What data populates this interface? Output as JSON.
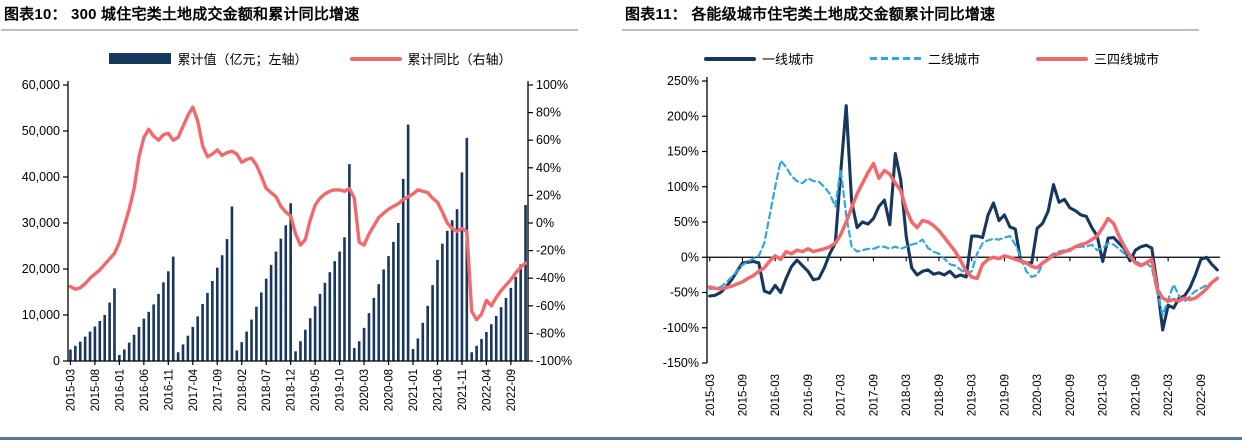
{
  "page": {
    "bottom_rule_color": "#56779f",
    "title_rule_color": "#b7c1d3",
    "axis_color": "#000000"
  },
  "figure10": {
    "title": "图表10： 300 城住宅类土地成交金额和累计同比增速",
    "legend": [
      {
        "label": "累计值（亿元；左轴）",
        "type": "bar",
        "color": "#17375e"
      },
      {
        "label": "累计同比（右轴）",
        "type": "line",
        "color": "#f2696c"
      }
    ],
    "left_axis_ticks": [
      "60,000",
      "50,000",
      "40,000",
      "30,000",
      "20,000",
      "10,000",
      "0"
    ],
    "right_axis_ticks": [
      "100%",
      "80%",
      "60%",
      "40%",
      "20%",
      "0%",
      "-20%",
      "-40%",
      "-60%",
      "-80%",
      "-100%"
    ],
    "x_tick_labels": [
      "2015-03",
      "2015-08",
      "2016-01",
      "2016-06",
      "2016-11",
      "2017-04",
      "2017-09",
      "2018-02",
      "2018-07",
      "2018-12",
      "2019-05",
      "2019-10",
      "2020-03",
      "2020-08",
      "2021-01",
      "2021-06",
      "2021-11",
      "2022-04",
      "2022-09"
    ],
    "chart_data": {
      "type": "bar",
      "title": "300城住宅类土地成交金额和累计同比增速",
      "left_axis_range": [
        0,
        60000
      ],
      "right_axis_range": [
        -100,
        100
      ],
      "grid": false,
      "legend_position": "top",
      "x": [
        "2015-03",
        "2015-04",
        "2015-05",
        "2015-06",
        "2015-07",
        "2015-08",
        "2015-09",
        "2015-10",
        "2015-11",
        "2015-12",
        "2016-01",
        "2016-02",
        "2016-03",
        "2016-04",
        "2016-05",
        "2016-06",
        "2016-07",
        "2016-08",
        "2016-09",
        "2016-10",
        "2016-11",
        "2016-12",
        "2017-01",
        "2017-02",
        "2017-03",
        "2017-04",
        "2017-05",
        "2017-06",
        "2017-07",
        "2017-08",
        "2017-09",
        "2017-10",
        "2017-11",
        "2017-12",
        "2018-01",
        "2018-02",
        "2018-03",
        "2018-04",
        "2018-05",
        "2018-06",
        "2018-07",
        "2018-08",
        "2018-09",
        "2018-10",
        "2018-11",
        "2018-12",
        "2019-01",
        "2019-02",
        "2019-03",
        "2019-04",
        "2019-05",
        "2019-06",
        "2019-07",
        "2019-08",
        "2019-09",
        "2019-10",
        "2019-11",
        "2019-12",
        "2020-01",
        "2020-02",
        "2020-03",
        "2020-04",
        "2020-05",
        "2020-06",
        "2020-07",
        "2020-08",
        "2020-09",
        "2020-10",
        "2020-11",
        "2020-12",
        "2021-01",
        "2021-02",
        "2021-03",
        "2021-04",
        "2021-05",
        "2021-06",
        "2021-07",
        "2021-08",
        "2021-09",
        "2021-10",
        "2021-11",
        "2021-12",
        "2022-01",
        "2022-02",
        "2022-03",
        "2022-04",
        "2022-05",
        "2022-06",
        "2022-07",
        "2022-08",
        "2022-09",
        "2022-10",
        "2022-11",
        "2022-12"
      ],
      "series": [
        {
          "name": "累计值（亿元；左轴）",
          "type": "bar",
          "axis": "left",
          "color": "#17375e",
          "values": [
            2500,
            3300,
            4200,
            5300,
            6400,
            7500,
            8700,
            10000,
            12700,
            15800,
            1300,
            2500,
            4000,
            5700,
            7400,
            9200,
            10700,
            12300,
            14600,
            17100,
            19500,
            22700,
            1900,
            3600,
            5500,
            7400,
            9700,
            12400,
            14800,
            17400,
            20300,
            23000,
            26500,
            33600,
            2300,
            4100,
            6400,
            9000,
            11800,
            14900,
            17900,
            20900,
            23800,
            26600,
            29500,
            34300,
            2100,
            4300,
            6800,
            9300,
            11900,
            14600,
            17000,
            19300,
            21700,
            23800,
            26900,
            42800,
            2800,
            4300,
            7200,
            10400,
            13700,
            16700,
            19900,
            22800,
            25900,
            30000,
            39600,
            51400,
            2600,
            4900,
            8300,
            12000,
            16500,
            22000,
            25500,
            28300,
            30600,
            33000,
            41000,
            48500,
            1900,
            3300,
            4800,
            6300,
            8000,
            9800,
            11700,
            13700,
            15900,
            18300,
            21000,
            33900
          ]
        },
        {
          "name": "累计同比（右轴）",
          "type": "line",
          "axis": "right",
          "color": "#f2696c",
          "values": [
            -46,
            -48,
            -47,
            -44,
            -40,
            -37,
            -34,
            -30,
            -26,
            -22,
            -14,
            -2,
            10,
            25,
            48,
            62,
            68,
            63,
            60,
            64,
            65,
            60,
            62,
            70,
            78,
            84,
            74,
            56,
            48,
            50,
            53,
            49,
            51,
            52,
            50,
            44,
            46,
            47,
            42,
            34,
            25,
            22,
            19,
            12,
            8,
            5,
            -8,
            -16,
            -12,
            2,
            13,
            18,
            21,
            23,
            24,
            24,
            23,
            25,
            18,
            -14,
            -16,
            -8,
            -2,
            4,
            7,
            10,
            12,
            14,
            17,
            19,
            21,
            24,
            23,
            22,
            18,
            15,
            8,
            0,
            -4,
            -6,
            -4,
            -6,
            -64,
            -70,
            -66,
            -56,
            -60,
            -54,
            -49,
            -45,
            -41,
            -36,
            -32,
            -29
          ]
        }
      ]
    }
  },
  "figure11": {
    "title": "图表11： 各能级城市住宅类土地成交金额累计同比增速",
    "legend": [
      {
        "label": "一线城市",
        "type": "line",
        "color": "#17375e"
      },
      {
        "label": "二线城市",
        "type": "dashed-line",
        "color": "#2ea8e0"
      },
      {
        "label": "三四线城市",
        "type": "line",
        "color": "#f2696c"
      }
    ],
    "y_axis_ticks": [
      "250%",
      "200%",
      "150%",
      "100%",
      "50%",
      "0%",
      "-50%",
      "-100%",
      "-150%"
    ],
    "x_tick_labels": [
      "2015-03",
      "2015-09",
      "2016-03",
      "2016-09",
      "2017-03",
      "2017-09",
      "2018-03",
      "2018-09",
      "2019-03",
      "2019-09",
      "2020-03",
      "2020-09",
      "2021-03",
      "2021-09",
      "2022-03",
      "2022-09"
    ],
    "chart_data": {
      "type": "line",
      "title": "各能级城市住宅类土地成交金额累计同比增速",
      "y_axis_range": [
        -150,
        250
      ],
      "grid": false,
      "legend_position": "top",
      "x": [
        "2015-03",
        "2015-04",
        "2015-05",
        "2015-06",
        "2015-07",
        "2015-08",
        "2015-09",
        "2015-10",
        "2015-11",
        "2015-12",
        "2016-01",
        "2016-02",
        "2016-03",
        "2016-04",
        "2016-05",
        "2016-06",
        "2016-07",
        "2016-08",
        "2016-09",
        "2016-10",
        "2016-11",
        "2016-12",
        "2017-01",
        "2017-02",
        "2017-03",
        "2017-04",
        "2017-05",
        "2017-06",
        "2017-07",
        "2017-08",
        "2017-09",
        "2017-10",
        "2017-11",
        "2017-12",
        "2018-01",
        "2018-02",
        "2018-03",
        "2018-04",
        "2018-05",
        "2018-06",
        "2018-07",
        "2018-08",
        "2018-09",
        "2018-10",
        "2018-11",
        "2018-12",
        "2019-01",
        "2019-02",
        "2019-03",
        "2019-04",
        "2019-05",
        "2019-06",
        "2019-07",
        "2019-08",
        "2019-09",
        "2019-10",
        "2019-11",
        "2019-12",
        "2020-01",
        "2020-02",
        "2020-03",
        "2020-04",
        "2020-05",
        "2020-06",
        "2020-07",
        "2020-08",
        "2020-09",
        "2020-10",
        "2020-11",
        "2020-12",
        "2021-01",
        "2021-02",
        "2021-03",
        "2021-04",
        "2021-05",
        "2021-06",
        "2021-07",
        "2021-08",
        "2021-09",
        "2021-10",
        "2021-11",
        "2021-12",
        "2022-01",
        "2022-02",
        "2022-03",
        "2022-04",
        "2022-05",
        "2022-06",
        "2022-07",
        "2022-08",
        "2022-09",
        "2022-10",
        "2022-11",
        "2022-12"
      ],
      "series": [
        {
          "name": "一线城市",
          "style": "solid",
          "color": "#17375e",
          "values": [
            -55,
            -54,
            -50,
            -42,
            -32,
            -20,
            -8,
            -7,
            -6,
            -8,
            -48,
            -51,
            -40,
            -50,
            -30,
            -13,
            -4,
            -12,
            -20,
            -32,
            -30,
            -15,
            5,
            20,
            120,
            215,
            80,
            42,
            50,
            47,
            55,
            72,
            81,
            46,
            147,
            110,
            30,
            -15,
            -25,
            -20,
            -18,
            -24,
            -22,
            -25,
            -20,
            -28,
            -25,
            -28,
            30,
            30,
            28,
            60,
            77,
            52,
            60,
            43,
            40,
            -6,
            -8,
            -8,
            41,
            48,
            65,
            103,
            78,
            82,
            70,
            66,
            60,
            58,
            42,
            30,
            -6,
            27,
            28,
            20,
            12,
            -5,
            10,
            15,
            17,
            13,
            -40,
            -103,
            -68,
            -72,
            -58,
            -55,
            -43,
            -25,
            -3,
            0,
            -10,
            -18
          ]
        },
        {
          "name": "二线城市",
          "style": "dashed",
          "color": "#2ea8e0",
          "values": [
            -45,
            -44,
            -42,
            -36,
            -28,
            -20,
            -11,
            -6,
            -2,
            2,
            20,
            60,
            100,
            137,
            128,
            115,
            108,
            105,
            112,
            108,
            107,
            100,
            90,
            72,
            125,
            60,
            15,
            8,
            10,
            12,
            12,
            15,
            15,
            12,
            15,
            12,
            15,
            18,
            20,
            25,
            13,
            8,
            5,
            -2,
            -10,
            -12,
            -18,
            -23,
            -20,
            5,
            20,
            24,
            26,
            25,
            28,
            30,
            18,
            0,
            -20,
            -28,
            -25,
            -10,
            0,
            5,
            8,
            10,
            12,
            14,
            15,
            15,
            18,
            10,
            13,
            20,
            18,
            12,
            5,
            0,
            -5,
            -10,
            -8,
            -15,
            -50,
            -82,
            -60,
            -39,
            -55,
            -63,
            -55,
            -48,
            -44,
            -40,
            -36,
            -32
          ]
        },
        {
          "name": "三四线城市",
          "style": "solid",
          "color": "#f2696c",
          "values": [
            -42,
            -44,
            -45,
            -43,
            -41,
            -38,
            -35,
            -30,
            -26,
            -20,
            -15,
            -5,
            2,
            -3,
            8,
            5,
            10,
            8,
            12,
            8,
            10,
            12,
            15,
            20,
            32,
            50,
            70,
            90,
            105,
            120,
            133,
            112,
            123,
            118,
            105,
            95,
            68,
            50,
            42,
            52,
            50,
            45,
            38,
            28,
            18,
            8,
            -5,
            -20,
            -28,
            -30,
            -10,
            -3,
            0,
            -2,
            2,
            0,
            -3,
            -5,
            -8,
            -13,
            -15,
            -8,
            -3,
            3,
            5,
            8,
            10,
            15,
            18,
            20,
            25,
            30,
            42,
            55,
            48,
            30,
            15,
            2,
            -8,
            -12,
            -8,
            -3,
            -45,
            -58,
            -62,
            -60,
            -62,
            -58,
            -60,
            -58,
            -52,
            -45,
            -36,
            -30
          ]
        }
      ]
    }
  }
}
